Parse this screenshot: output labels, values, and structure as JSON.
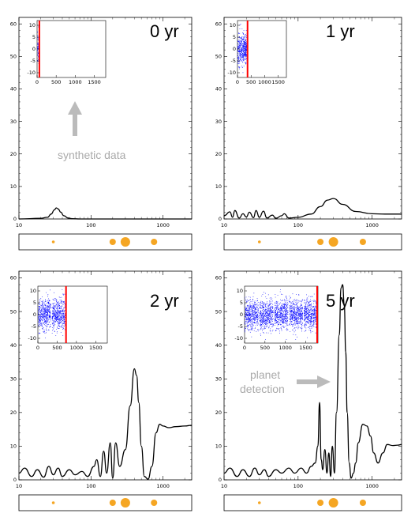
{
  "colors": {
    "curve": "#000000",
    "scatter": "#0000ff",
    "marker": "#ff0000",
    "planet": "#f5a623",
    "annotation": "#aaaaaa",
    "arrow": "#bbbbbb"
  },
  "annotations": {
    "synthetic": "synthetic data",
    "planet_line1": "planet",
    "planet_line2": "detection"
  },
  "chart_data": [
    {
      "type": "line",
      "label": "0 yr",
      "xscale": "log",
      "xlim": [
        10,
        2500
      ],
      "ylim": [
        0,
        62
      ],
      "xticks": [
        "10",
        "100",
        "1000"
      ],
      "yticks": [
        "0",
        "10",
        "20",
        "30",
        "40",
        "50",
        "60"
      ],
      "x": [
        10,
        20,
        25,
        28,
        31,
        33,
        35,
        38,
        42,
        48,
        55,
        70,
        100,
        200,
        500,
        1000,
        2500
      ],
      "y": [
        0,
        0.2,
        0.5,
        1.5,
        2.8,
        3.4,
        3.1,
        2.1,
        1.0,
        0.3,
        0.1,
        0,
        0,
        0,
        0,
        0,
        0
      ],
      "inset": {
        "xlim": [
          0,
          1800
        ],
        "ylim": [
          -12,
          12
        ],
        "xticks": [
          "0",
          "500",
          "1000",
          "1500"
        ],
        "yticks": [
          "-10",
          "-5",
          "0",
          "5",
          "10"
        ],
        "time_marker": 60,
        "scatter_ranges": [
          [
            0,
            55
          ]
        ]
      },
      "planet_periods": [
        30,
        200,
        300,
        750
      ],
      "planet_sizes": [
        "small",
        "medium",
        "large",
        "medium"
      ]
    },
    {
      "type": "line",
      "label": "1 yr",
      "xscale": "log",
      "xlim": [
        10,
        2500
      ],
      "ylim": [
        0,
        62
      ],
      "xticks": [
        "10",
        "100",
        "1000"
      ],
      "yticks": [
        "0",
        "10",
        "20",
        "30",
        "40",
        "50",
        "60"
      ],
      "x": [
        10,
        12,
        13,
        14,
        16,
        18,
        20,
        22,
        25,
        27,
        30,
        34,
        38,
        45,
        50,
        60,
        65,
        75,
        100,
        150,
        200,
        250,
        300,
        400,
        600,
        1000,
        1500,
        2500
      ],
      "y": [
        1,
        2.2,
        0.5,
        2.6,
        0.3,
        1.6,
        0.6,
        2.1,
        0.4,
        2.6,
        0.5,
        2.4,
        0.3,
        1.2,
        0.2,
        1.0,
        1.6,
        0.3,
        0.5,
        1.5,
        3.8,
        5.8,
        6.3,
        4.5,
        2.3,
        1.6,
        1.5,
        1.5
      ],
      "inset": {
        "xlim": [
          0,
          1800
        ],
        "ylim": [
          -12,
          12
        ],
        "xticks": [
          "0",
          "500",
          "1000",
          "1500"
        ],
        "yticks": [
          "-10",
          "-5",
          "0",
          "5",
          "10"
        ],
        "time_marker": 370,
        "scatter_ranges": [
          [
            0,
            340
          ]
        ]
      },
      "planet_periods": [
        30,
        200,
        300,
        750
      ],
      "planet_sizes": [
        "small",
        "medium",
        "large",
        "medium"
      ]
    },
    {
      "type": "line",
      "label": "2 yr",
      "xscale": "log",
      "xlim": [
        10,
        2500
      ],
      "ylim": [
        0,
        62
      ],
      "xticks": [
        "10",
        "100",
        "1000"
      ],
      "yticks": [
        "0",
        "10",
        "20",
        "30",
        "40",
        "50",
        "60"
      ],
      "x": [
        10,
        12,
        15,
        18,
        22,
        26,
        30,
        35,
        40,
        50,
        60,
        75,
        90,
        110,
        120,
        135,
        150,
        165,
        185,
        200,
        220,
        250,
        300,
        350,
        400,
        430,
        460,
        500,
        550,
        620,
        700,
        800,
        900,
        1000,
        1200,
        1500,
        2000,
        2500
      ],
      "y": [
        2,
        3.5,
        1,
        3,
        0.8,
        4,
        1.5,
        3.5,
        1,
        3,
        1.5,
        2.5,
        1,
        4,
        6,
        1,
        8.5,
        2,
        11,
        0.5,
        11,
        4,
        9,
        22,
        33,
        31,
        23,
        10,
        1,
        0.2,
        4,
        14,
        16.5,
        16,
        15.5,
        15.8,
        16,
        16.2
      ],
      "inset": {
        "xlim": [
          0,
          1800
        ],
        "ylim": [
          -12,
          12
        ],
        "xticks": [
          "0",
          "500",
          "1000",
          "1500"
        ],
        "yticks": [
          "-10",
          "-5",
          "0",
          "5",
          "10"
        ],
        "time_marker": 730,
        "scatter_ranges": [
          [
            0,
            330
          ],
          [
            360,
            700
          ]
        ]
      },
      "planet_periods": [
        30,
        200,
        300,
        750
      ],
      "planet_sizes": [
        "small",
        "medium",
        "large",
        "medium"
      ]
    },
    {
      "type": "line",
      "label": "5 yr",
      "xscale": "log",
      "xlim": [
        10,
        2500
      ],
      "ylim": [
        0,
        62
      ],
      "xticks": [
        "10",
        "100",
        "1000"
      ],
      "yticks": [
        "0",
        "10",
        "20",
        "30",
        "40",
        "50",
        "60"
      ],
      "x": [
        10,
        12,
        15,
        18,
        22,
        26,
        30,
        35,
        40,
        50,
        60,
        75,
        90,
        110,
        130,
        150,
        170,
        185,
        195,
        205,
        215,
        230,
        245,
        260,
        275,
        290,
        310,
        330,
        360,
        380,
        400,
        420,
        440,
        460,
        490,
        520,
        560,
        600,
        650,
        750,
        850,
        950,
        1050,
        1200,
        1400,
        1600,
        1900,
        2200,
        2500
      ],
      "y": [
        2,
        3.5,
        1,
        3,
        1,
        3.5,
        1.5,
        3,
        1,
        3,
        2,
        3.5,
        2,
        3.5,
        2,
        4,
        5,
        10,
        23,
        6,
        3,
        9,
        2,
        8,
        1,
        10,
        2,
        20,
        43,
        57,
        58,
        52,
        38,
        20,
        5,
        0.5,
        2,
        5,
        11,
        16.5,
        16,
        13,
        8,
        5,
        8,
        10.5,
        10.2,
        10.3,
        10.5
      ],
      "inset": {
        "xlim": [
          0,
          1800
        ],
        "ylim": [
          -12,
          12
        ],
        "xticks": [
          "0",
          "500",
          "1000",
          "1500"
        ],
        "yticks": [
          "-10",
          "-5",
          "0",
          "5",
          "10"
        ],
        "time_marker": 1780,
        "scatter_ranges": [
          [
            0,
            330
          ],
          [
            360,
            700
          ],
          [
            730,
            1060
          ],
          [
            1090,
            1420
          ],
          [
            1450,
            1760
          ]
        ]
      },
      "planet_periods": [
        30,
        200,
        300,
        750
      ],
      "planet_sizes": [
        "small",
        "medium",
        "large",
        "medium"
      ]
    }
  ]
}
